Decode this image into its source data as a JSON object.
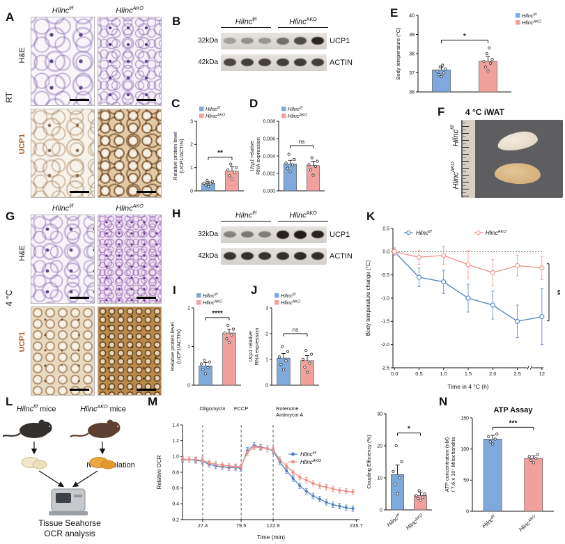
{
  "colors": {
    "flox_fill": "#7FA8DC",
    "ako_fill": "#F2A09C",
    "flox_line": "#4E7FC0",
    "ako_line": "#EE8F85",
    "ucp1_label": "#B35A1E",
    "stain_purple": "#7B5EA7",
    "stain_brown": "#8B5A2B"
  },
  "genotypes": {
    "flox": {
      "text": "Hilnc",
      "sup": "f/f"
    },
    "ako": {
      "text": "Hlinc",
      "sup": "AKO"
    },
    "flox_mice": {
      "text": "Hilnc",
      "sup": "f/f",
      "after": " mice"
    },
    "ako_mice": {
      "text": "Hlinc",
      "sup": "AKO",
      "after": " mice"
    }
  },
  "panels": {
    "A": {
      "letter": "A",
      "side": "RT",
      "stain1": "H&E",
      "stain2": "UCP1"
    },
    "B": {
      "letter": "B"
    },
    "C": {
      "letter": "C"
    },
    "D": {
      "letter": "D"
    },
    "E": {
      "letter": "E"
    },
    "F": {
      "letter": "F",
      "title": "4 °C iWAT"
    },
    "G": {
      "letter": "G",
      "side": "4 °C",
      "stain1": "H&E",
      "stain2": "UCP1"
    },
    "H": {
      "letter": "H"
    },
    "I": {
      "letter": "I"
    },
    "J": {
      "letter": "J"
    },
    "K": {
      "letter": "K"
    },
    "L": {
      "letter": "L",
      "iwat": "iWAT Isolation",
      "sea1": "Tissue Seahorse",
      "sea2": "OCR analysis"
    },
    "M": {
      "letter": "M"
    },
    "N": {
      "letter": "N"
    }
  },
  "blots": {
    "B": {
      "group_labels": [
        {
          "text": "Hilnc",
          "sup": "f/f"
        },
        {
          "text": "Hlinc",
          "sup": "AKO"
        }
      ],
      "rows": [
        {
          "kda": "32kDa",
          "protein": "UCP1",
          "bands": [
            0.3,
            0.38,
            0.35,
            0.55,
            0.72,
            0.92
          ]
        },
        {
          "kda": "42kDa",
          "protein": "ACTIN",
          "bands": [
            0.75,
            0.8,
            0.78,
            0.8,
            0.82,
            0.8
          ]
        }
      ]
    },
    "H": {
      "group_labels": [
        {
          "text": "Hilnc",
          "sup": "f/f"
        },
        {
          "text": "Hlinc",
          "sup": "AKO"
        }
      ],
      "rows": [
        {
          "kda": "32kDa",
          "protein": "UCP1",
          "bands": [
            0.45,
            0.5,
            0.48,
            0.95,
            0.97,
            0.93
          ]
        },
        {
          "kda": "42kDa",
          "protein": "ACTIN",
          "bands": [
            0.85,
            0.88,
            0.86,
            0.88,
            0.9,
            0.87
          ]
        }
      ]
    }
  },
  "chart_data": [
    {
      "id": "C",
      "type": "bar",
      "ylabel": [
        "Relative protein level",
        "(UCP1/ACTIN)"
      ],
      "categories": [
        "Hilnc f/f",
        "Hlinc AKO"
      ],
      "values": [
        0.32,
        0.85
      ],
      "errors": [
        0.07,
        0.2
      ],
      "points": [
        [
          0.18,
          0.25,
          0.3,
          0.33,
          0.4,
          0.45
        ],
        [
          0.5,
          0.65,
          0.8,
          0.9,
          1.0,
          1.15
        ]
      ],
      "ylim": [
        0,
        3
      ],
      "yticks": [
        0,
        1,
        2,
        3
      ],
      "ytick_labels": [
        "0",
        "1",
        "2",
        "3"
      ],
      "sig": {
        "text": "**",
        "y": 1.45
      },
      "bar_colors": [
        "#7FA8DC",
        "#F2A09C"
      ],
      "legend": {
        "pos": "top-left",
        "items": [
          {
            "text": "Hilnc",
            "sup": "f/f",
            "color": "#7FA8DC"
          },
          {
            "text": "Hlinc",
            "sup": "AKO",
            "color": "#F2A09C"
          }
        ]
      }
    },
    {
      "id": "D",
      "type": "bar",
      "ylabel": [
        "Ucp1 relative",
        "RNA expression"
      ],
      "ylabel_italic_prefix": "Ucp1",
      "categories": [
        "Hilnc f/f",
        "Hlinc AKO"
      ],
      "values": [
        0.0031,
        0.0029
      ],
      "errors": [
        0.0004,
        0.0005
      ],
      "points": [
        [
          0.0022,
          0.0026,
          0.003,
          0.0032,
          0.0036,
          0.0042
        ],
        [
          0.0018,
          0.0024,
          0.0028,
          0.003,
          0.0034,
          0.0038
        ]
      ],
      "ylim": [
        0,
        0.008
      ],
      "yticks": [
        0,
        0.002,
        0.004,
        0.006,
        0.008
      ],
      "ytick_labels": [
        "0.000",
        "0.002",
        "0.004",
        "0.006",
        "0.008"
      ],
      "sig": {
        "text": "ns",
        "y": 0.0052
      },
      "bar_colors": [
        "#7FA8DC",
        "#F2A09C"
      ],
      "legend": {
        "pos": "top-left",
        "items": [
          {
            "text": "Hilnc",
            "sup": "f/f",
            "color": "#7FA8DC"
          },
          {
            "text": "Hlinc",
            "sup": "AKO",
            "color": "#F2A09C"
          }
        ]
      }
    },
    {
      "id": "E",
      "type": "bar",
      "ylabel": [
        "Body temperature (°C)"
      ],
      "categories": [
        "Hilnc f/f",
        "Hlinc AKO"
      ],
      "values": [
        37.15,
        37.6
      ],
      "errors": [
        0.15,
        0.25
      ],
      "points": [
        [
          36.8,
          36.9,
          37.0,
          37.1,
          37.2,
          37.3,
          37.4
        ],
        [
          37.1,
          37.3,
          37.5,
          37.6,
          37.7,
          38.0,
          38.3
        ]
      ],
      "ylim": [
        36,
        40
      ],
      "yticks": [
        36,
        37,
        38,
        39,
        40
      ],
      "ytick_labels": [
        "36",
        "37",
        "38",
        "39",
        "40"
      ],
      "sig": {
        "text": "*",
        "y": 38.7
      },
      "bar_colors": [
        "#7FA8DC",
        "#F2A09C"
      ],
      "legend": {
        "pos": "right-out",
        "items": [
          {
            "text": "Hilnc",
            "sup": "f/f",
            "color": "#7FA8DC"
          },
          {
            "text": "Hlinc",
            "sup": "AKO",
            "color": "#F2A09C"
          }
        ]
      }
    },
    {
      "id": "I",
      "type": "bar",
      "ylabel": [
        "Relative protein level",
        "(UCP1/ACTIN)"
      ],
      "categories": [
        "Hilnc f/f",
        "Hlinc AKO"
      ],
      "values": [
        0.5,
        1.35
      ],
      "errors": [
        0.09,
        0.1
      ],
      "points": [
        [
          0.3,
          0.4,
          0.45,
          0.55,
          0.6,
          0.65
        ],
        [
          1.1,
          1.2,
          1.3,
          1.35,
          1.45,
          1.55
        ]
      ],
      "ylim": [
        0,
        2
      ],
      "yticks": [
        0,
        1,
        2
      ],
      "ytick_labels": [
        "0",
        "1",
        "2"
      ],
      "sig": {
        "text": "****",
        "y": 1.75
      },
      "bar_colors": [
        "#7FA8DC",
        "#F2A09C"
      ],
      "legend": {
        "pos": "top-left",
        "items": [
          {
            "text": "Hilnc",
            "sup": "f/f",
            "color": "#7FA8DC"
          },
          {
            "text": "Hlinc",
            "sup": "AKO",
            "color": "#F2A09C"
          }
        ]
      }
    },
    {
      "id": "J",
      "type": "bar",
      "ylabel": [
        "Ucp1 relative",
        "RNA expression"
      ],
      "ylabel_italic_prefix": "Ucp1",
      "categories": [
        "Hilnc f/f",
        "Hlinc AKO"
      ],
      "values": [
        1.05,
        0.95
      ],
      "errors": [
        0.18,
        0.2
      ],
      "points": [
        [
          0.6,
          0.8,
          0.95,
          1.1,
          1.3,
          1.5
        ],
        [
          0.5,
          0.7,
          0.85,
          1.0,
          1.2,
          1.35
        ]
      ],
      "ylim": [
        0,
        3
      ],
      "yticks": [
        0,
        1,
        2,
        3
      ],
      "ytick_labels": [
        "0",
        "1",
        "2",
        "3"
      ],
      "sig": {
        "text": "ns",
        "y": 2.0
      },
      "bar_colors": [
        "#7FA8DC",
        "#F2A09C"
      ],
      "legend": {
        "pos": "top-left",
        "items": [
          {
            "text": "Hilnc",
            "sup": "f/f",
            "color": "#7FA8DC"
          },
          {
            "text": "Hlinc",
            "sup": "AKO",
            "color": "#F2A09C"
          }
        ]
      }
    },
    {
      "id": "K",
      "type": "line",
      "xlabel": "Time in 4 °C (h)",
      "ylabel": [
        "Body temperature change (°C)"
      ],
      "x_labels": [
        "0.0",
        "0.5",
        "1.0",
        "1.5",
        "2.0",
        "2.5",
        "12"
      ],
      "x_break_after_index": 5,
      "ylim": [
        -2.5,
        0.5
      ],
      "yticks": [
        0.5,
        0,
        -0.5,
        -1,
        -1.5,
        -2,
        -2.5
      ],
      "ytick_labels": [
        "0.5",
        "0.0",
        "-0.5",
        "-1.0",
        "-1.5",
        "-2.0",
        "-2.5"
      ],
      "zero_line": true,
      "legend_pos": "top-row",
      "marker": {
        "r": 3,
        "fill": "#fff"
      },
      "sig": {
        "text": "**"
      },
      "series": [
        {
          "name": {
            "text": "Hilnc",
            "sup": "f/f"
          },
          "color": "#4E7FC0",
          "values": [
            0,
            -0.55,
            -0.65,
            -1.0,
            -1.15,
            -1.5,
            -1.4
          ],
          "errors": [
            0.08,
            0.2,
            0.25,
            0.3,
            0.3,
            0.35,
            0.6
          ]
        },
        {
          "name": {
            "text": "Hlinc",
            "sup": "AKO"
          },
          "color": "#EE8F85",
          "values": [
            0,
            -0.12,
            -0.08,
            -0.28,
            -0.45,
            -0.3,
            -0.35
          ],
          "errors": [
            0.08,
            0.15,
            0.2,
            0.3,
            0.28,
            0.22,
            0.25
          ]
        }
      ]
    },
    {
      "id": "M_ocr",
      "type": "line",
      "xlabel": "Time (min)",
      "ylabel": [
        "Relative OCR"
      ],
      "x": [
        0,
        9,
        18,
        27,
        36,
        45,
        54,
        63,
        72,
        79,
        88,
        97,
        106,
        115,
        123,
        132,
        141,
        150,
        159,
        168,
        177,
        186,
        195,
        204,
        213,
        222,
        231
      ],
      "xlim": [
        0,
        240
      ],
      "xticks": [
        27.4,
        79.5,
        122.9,
        235.7
      ],
      "xtick_labels": [
        "27.4",
        "79.5",
        "122.9",
        "235.7"
      ],
      "vlines": [
        {
          "x": 27.4,
          "label": [
            "Oligomycin"
          ],
          "label_dx": 14,
          "anchor": "middle"
        },
        {
          "x": 79.5,
          "label": [
            "FCCP"
          ],
          "label_dx": 0,
          "anchor": "middle"
        },
        {
          "x": 122.9,
          "label": [
            "Rotenone",
            "Antimycin A"
          ],
          "label_dx": 4,
          "anchor": "start"
        }
      ],
      "ylim": [
        0.2,
        1.4
      ],
      "yticks": [
        0.2,
        0.4,
        0.6,
        0.8,
        1.0,
        1.2,
        1.4
      ],
      "ytick_labels": [
        "0.2",
        "0.4",
        "0.6",
        "0.8",
        "1.0",
        "1.2",
        "1.4"
      ],
      "legend_pos": "mid-right",
      "marker": {
        "r": 1.6,
        "fill": "self"
      },
      "series": [
        {
          "name": {
            "text": "Hilnc",
            "sup": "f/f"
          },
          "color": "#4E7FC0",
          "err": 0.035,
          "values": [
            0.96,
            0.96,
            0.95,
            0.94,
            0.9,
            0.88,
            0.87,
            0.86,
            0.86,
            0.85,
            1.08,
            1.14,
            1.12,
            1.1,
            1.07,
            0.93,
            0.82,
            0.72,
            0.63,
            0.56,
            0.5,
            0.46,
            0.42,
            0.39,
            0.37,
            0.35,
            0.34
          ]
        },
        {
          "name": {
            "text": "Hlinc",
            "sup": "AKO"
          },
          "color": "#EE8F85",
          "err": 0.035,
          "values": [
            0.97,
            0.96,
            0.96,
            0.95,
            0.92,
            0.9,
            0.89,
            0.88,
            0.87,
            0.87,
            1.05,
            1.12,
            1.11,
            1.1,
            1.08,
            0.96,
            0.88,
            0.8,
            0.74,
            0.7,
            0.66,
            0.63,
            0.61,
            0.59,
            0.57,
            0.56,
            0.55
          ]
        }
      ]
    },
    {
      "id": "M_ce",
      "type": "bar",
      "ylabel": [
        "Coupling Efficiency (%)"
      ],
      "categories": [
        "Hilnc f/f",
        "Hlinc AKO"
      ],
      "values": [
        11,
        4.5
      ],
      "errors": [
        3,
        1
      ],
      "points": [
        [
          5,
          8,
          10,
          12,
          15,
          20
        ],
        [
          3,
          3.5,
          4,
          4.5,
          5,
          6
        ]
      ],
      "ylim": [
        0,
        30
      ],
      "yticks": [
        0,
        10,
        20,
        30
      ],
      "ytick_labels": [
        "0",
        "10",
        "20",
        "30"
      ],
      "sig": {
        "text": "*",
        "y": 24
      },
      "bar_colors": [
        "#7FA8DC",
        "#F2A09C"
      ],
      "xlabels": [
        {
          "text": "Hilnc",
          "sup": "f/f"
        },
        {
          "text": "Hlinc",
          "sup": "AKO"
        }
      ]
    },
    {
      "id": "N",
      "type": "bar",
      "title": "ATP Assay",
      "ylabel": [
        "ATP concentration (nM)",
        "/ 7.6 x 10⁵ Mitochondria"
      ],
      "categories": [
        "Hilnc f/f",
        "Hlinc AKO"
      ],
      "values": [
        116,
        85
      ],
      "errors": [
        6,
        4
      ],
      "points": [
        [
          108,
          112,
          116,
          120,
          124
        ],
        [
          78,
          82,
          85,
          88,
          91
        ]
      ],
      "ylim": [
        0,
        150
      ],
      "yticks": [
        0,
        50,
        100,
        150
      ],
      "ytick_labels": [
        "0",
        "50",
        "100",
        "150"
      ],
      "sig": {
        "text": "***",
        "y": 135
      },
      "bar_colors": [
        "#7FA8DC",
        "#F2A09C"
      ],
      "xlabels": [
        {
          "text": "Hilnc",
          "sup": "f/f"
        },
        {
          "text": "Hlinc",
          "sup": "AKO"
        }
      ]
    }
  ]
}
